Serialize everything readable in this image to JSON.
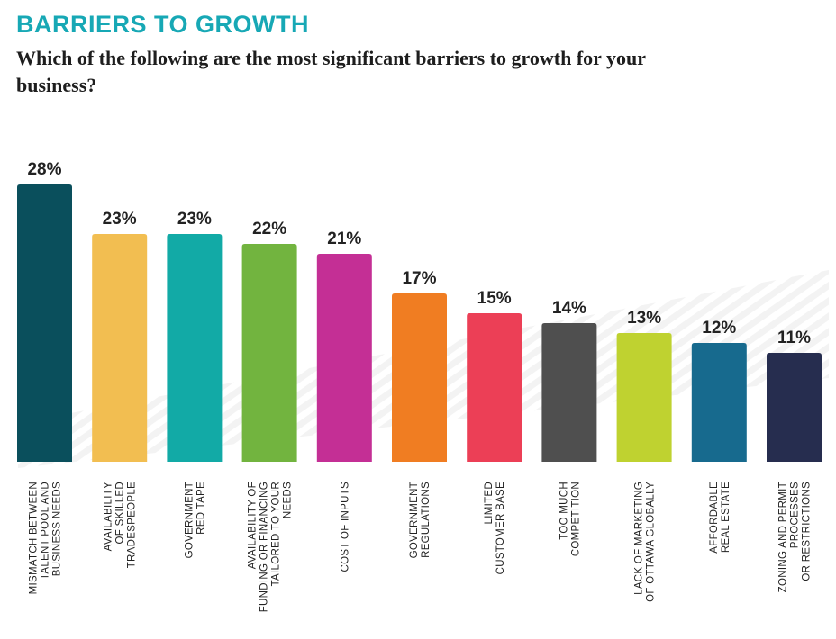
{
  "header": {
    "title": "BARRIERS TO GROWTH",
    "question": "Which of the following are the most significant barriers to growth for your business?"
  },
  "chart_data": {
    "type": "bar",
    "title": "",
    "xlabel": "",
    "ylabel": "",
    "ylim": [
      0,
      28
    ],
    "grid": false,
    "value_suffix": "%",
    "categories": [
      [
        "MISMATCH BETWEEN",
        "TALENT POOL AND",
        "BUSINESS NEEDS"
      ],
      [
        "AVAILABILITY",
        "OF SKILLED",
        "TRADESPEOPLE"
      ],
      [
        "GOVERNMENT",
        "RED TAPE"
      ],
      [
        "AVAILABILITY OF",
        "FUNDING OR FINANCING",
        "TAILORED TO YOUR",
        "NEEDS"
      ],
      [
        "COST OF INPUTS"
      ],
      [
        "GOVERNMENT",
        "REGULATIONS"
      ],
      [
        "LIMITED",
        "CUSTOMER BASE"
      ],
      [
        "TOO MUCH",
        "COMPETITION"
      ],
      [
        "LACK OF MARKETING",
        "OF OTTAWA GLOBALLY"
      ],
      [
        "AFFORDABLE",
        "REAL ESTATE"
      ],
      [
        "ZONING AND PERMIT",
        "PROCESSES",
        "OR RESTRICTIONS"
      ]
    ],
    "values": [
      28,
      23,
      23,
      22,
      21,
      17,
      15,
      14,
      13,
      12,
      11
    ],
    "colors": [
      "#0a4f5c",
      "#f2be51",
      "#12aaa6",
      "#72b43f",
      "#c42f95",
      "#f07d22",
      "#ec3f56",
      "#4f4f4f",
      "#bfd230",
      "#176a8e",
      "#262d4f"
    ]
  }
}
